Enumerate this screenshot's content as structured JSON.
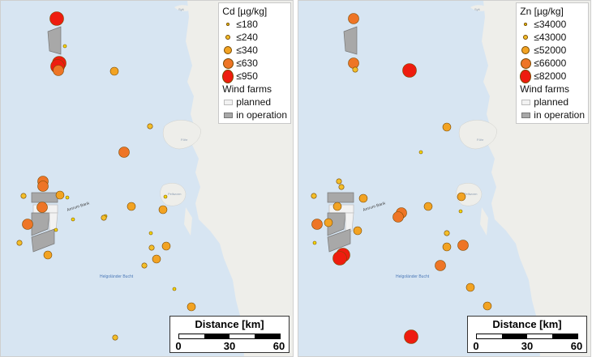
{
  "colors": {
    "water": "#d7e5f2",
    "land": "#eeeeea",
    "farm_planned": "#f2f2f2",
    "farm_in_operation": "#a8a8a8",
    "class_colors": [
      "#f5d800",
      "#f3be2a",
      "#f2a323",
      "#ee7526",
      "#ee1c0f"
    ]
  },
  "map_labels": {
    "sandbank": "Amrum Bank",
    "bight": "Helgoländer Bucht",
    "places": [
      "Sylt",
      "Föhr",
      "Pellworm"
    ]
  },
  "scalebar": {
    "title": "Distance [km]",
    "ticks": [
      "0",
      "30",
      "60"
    ]
  },
  "panels": [
    {
      "id": "cd",
      "legend": {
        "title": "Cd [µg/kg]",
        "classes": [
          "≤180",
          "≤240",
          "≤340",
          "≤630",
          "≤950"
        ],
        "windfarm_title": "Wind farms",
        "windfarm_classes": [
          "planned",
          "in operation"
        ]
      },
      "samples": [
        {
          "x": 69,
          "y": 22,
          "c": 4
        },
        {
          "x": 79,
          "y": 56,
          "c": 0
        },
        {
          "x": 72,
          "y": 77,
          "c": 4
        },
        {
          "x": 70,
          "y": 81,
          "c": 4
        },
        {
          "x": 71,
          "y": 86,
          "c": 3
        },
        {
          "x": 140,
          "y": 87,
          "c": 2
        },
        {
          "x": 184,
          "y": 155,
          "c": 1
        },
        {
          "x": 152,
          "y": 187,
          "c": 3
        },
        {
          "x": 52,
          "y": 223,
          "c": 3
        },
        {
          "x": 52,
          "y": 229,
          "c": 3
        },
        {
          "x": 28,
          "y": 241,
          "c": 1
        },
        {
          "x": 73,
          "y": 240,
          "c": 2
        },
        {
          "x": 82,
          "y": 243,
          "c": 0
        },
        {
          "x": 161,
          "y": 254,
          "c": 2
        },
        {
          "x": 203,
          "y": 242,
          "c": 0
        },
        {
          "x": 200,
          "y": 258,
          "c": 2
        },
        {
          "x": 51,
          "y": 255,
          "c": 3
        },
        {
          "x": 89,
          "y": 270,
          "c": 0
        },
        {
          "x": 129,
          "y": 266,
          "c": 0
        },
        {
          "x": 127,
          "y": 268,
          "c": 1
        },
        {
          "x": 33,
          "y": 276,
          "c": 3
        },
        {
          "x": 68,
          "y": 283,
          "c": 0
        },
        {
          "x": 185,
          "y": 287,
          "c": 0
        },
        {
          "x": 23,
          "y": 299,
          "c": 1
        },
        {
          "x": 204,
          "y": 303,
          "c": 2
        },
        {
          "x": 186,
          "y": 305,
          "c": 1
        },
        {
          "x": 58,
          "y": 314,
          "c": 2
        },
        {
          "x": 192,
          "y": 319,
          "c": 2
        },
        {
          "x": 177,
          "y": 327,
          "c": 1
        },
        {
          "x": 214,
          "y": 356,
          "c": 0
        },
        {
          "x": 235,
          "y": 378,
          "c": 2
        },
        {
          "x": 141,
          "y": 416,
          "c": 1
        }
      ]
    },
    {
      "id": "zn",
      "legend": {
        "title": "Zn [µg/kg]",
        "classes": [
          "≤34000",
          "≤43000",
          "≤52000",
          "≤66000",
          "≤82000"
        ],
        "windfarm_title": "Wind farms",
        "windfarm_classes": [
          "planned",
          "in operation"
        ]
      },
      "samples": [
        {
          "x": 68,
          "y": 22,
          "c": 3
        },
        {
          "x": 68,
          "y": 77,
          "c": 3
        },
        {
          "x": 70,
          "y": 85,
          "c": 1
        },
        {
          "x": 137,
          "y": 86,
          "c": 4
        },
        {
          "x": 183,
          "y": 156,
          "c": 2
        },
        {
          "x": 151,
          "y": 187,
          "c": 0
        },
        {
          "x": 50,
          "y": 223,
          "c": 1
        },
        {
          "x": 53,
          "y": 230,
          "c": 1
        },
        {
          "x": 19,
          "y": 241,
          "c": 1
        },
        {
          "x": 80,
          "y": 244,
          "c": 2
        },
        {
          "x": 160,
          "y": 254,
          "c": 2
        },
        {
          "x": 201,
          "y": 242,
          "c": 2
        },
        {
          "x": 48,
          "y": 254,
          "c": 2
        },
        {
          "x": 127,
          "y": 262,
          "c": 3
        },
        {
          "x": 123,
          "y": 267,
          "c": 3
        },
        {
          "x": 200,
          "y": 260,
          "c": 0
        },
        {
          "x": 23,
          "y": 276,
          "c": 3
        },
        {
          "x": 37,
          "y": 274,
          "c": 2
        },
        {
          "x": 73,
          "y": 284,
          "c": 2
        },
        {
          "x": 183,
          "y": 287,
          "c": 1
        },
        {
          "x": 20,
          "y": 299,
          "c": 0
        },
        {
          "x": 203,
          "y": 302,
          "c": 3
        },
        {
          "x": 183,
          "y": 304,
          "c": 2
        },
        {
          "x": 55,
          "y": 314,
          "c": 4
        },
        {
          "x": 51,
          "y": 318,
          "c": 4
        },
        {
          "x": 175,
          "y": 327,
          "c": 3
        },
        {
          "x": 212,
          "y": 354,
          "c": 2
        },
        {
          "x": 233,
          "y": 377,
          "c": 2
        },
        {
          "x": 139,
          "y": 415,
          "c": 4
        }
      ]
    }
  ]
}
